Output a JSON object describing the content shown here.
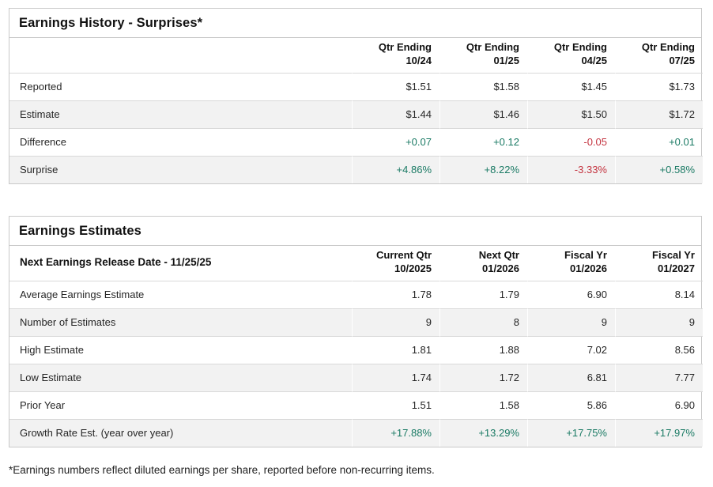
{
  "colors": {
    "positive": "#1a7a64",
    "negative": "#c43440"
  },
  "history": {
    "title": "Earnings History - Surprises*",
    "columns": [
      {
        "line1": "Qtr Ending",
        "line2": "10/24"
      },
      {
        "line1": "Qtr Ending",
        "line2": "01/25"
      },
      {
        "line1": "Qtr Ending",
        "line2": "04/25"
      },
      {
        "line1": "Qtr Ending",
        "line2": "07/25"
      }
    ],
    "rows": [
      {
        "label": "Reported",
        "values": [
          "$1.51",
          "$1.58",
          "$1.45",
          "$1.73"
        ]
      },
      {
        "label": "Estimate",
        "values": [
          "$1.44",
          "$1.46",
          "$1.50",
          "$1.72"
        ]
      },
      {
        "label": "Difference",
        "values": [
          "+0.07",
          "+0.12",
          "-0.05",
          "+0.01"
        ]
      },
      {
        "label": "Surprise",
        "values": [
          "+4.86%",
          "+8.22%",
          "-3.33%",
          "+0.58%"
        ]
      }
    ]
  },
  "estimates": {
    "title": "Earnings Estimates",
    "release_label": "Next Earnings Release Date - 11/25/25",
    "columns": [
      {
        "line1": "Current Qtr",
        "line2": "10/2025"
      },
      {
        "line1": "Next Qtr",
        "line2": "01/2026"
      },
      {
        "line1": "Fiscal Yr",
        "line2": "01/2026"
      },
      {
        "line1": "Fiscal Yr",
        "line2": "01/2027"
      }
    ],
    "rows": [
      {
        "label": "Average Earnings Estimate",
        "values": [
          "1.78",
          "1.79",
          "6.90",
          "8.14"
        ]
      },
      {
        "label": "Number of Estimates",
        "values": [
          "9",
          "8",
          "9",
          "9"
        ]
      },
      {
        "label": "High Estimate",
        "values": [
          "1.81",
          "1.88",
          "7.02",
          "8.56"
        ]
      },
      {
        "label": "Low Estimate",
        "values": [
          "1.74",
          "1.72",
          "6.81",
          "7.77"
        ]
      },
      {
        "label": "Prior Year",
        "values": [
          "1.51",
          "1.58",
          "5.86",
          "6.90"
        ]
      },
      {
        "label": "Growth Rate Est. (year over year)",
        "values": [
          "+17.88%",
          "+13.29%",
          "+17.75%",
          "+17.97%"
        ]
      }
    ]
  },
  "footnote": "*Earnings numbers reflect diluted earnings per share, reported before non-recurring items."
}
